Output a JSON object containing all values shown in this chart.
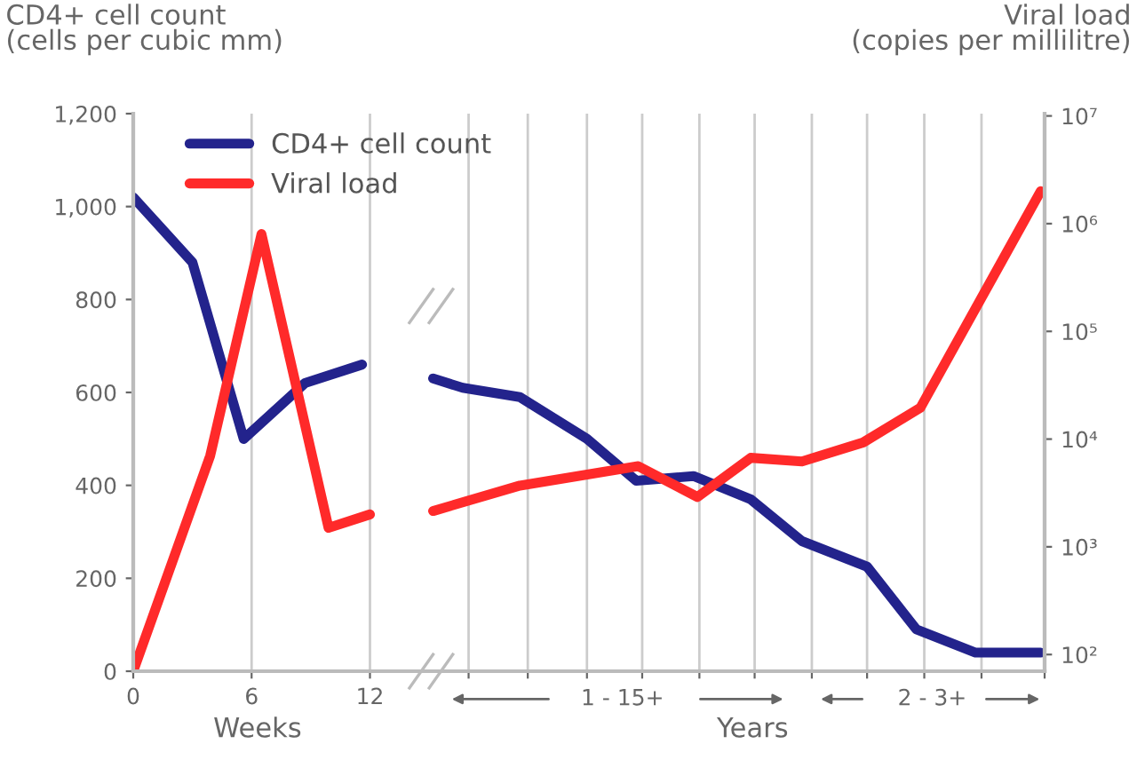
{
  "chart_data": {
    "type": "line",
    "ylabel": "CD4+ cell count\n(cells per cubic mm)",
    "y2label": "Viral load\n(copies per millilitre)",
    "xlim": [
      0,
      46.2
    ],
    "xticks": [
      0,
      6,
      12,
      {
        "value": 17,
        "label": null
      },
      {
        "value": 20,
        "label": null
      },
      {
        "value": 23,
        "label": null
      },
      {
        "value": 25.8,
        "label": null
      },
      {
        "value": 28.7,
        "label": null
      },
      {
        "value": 31.5,
        "label": null
      },
      {
        "value": 34.4,
        "label": null
      },
      {
        "value": 37.2,
        "label": null
      },
      {
        "value": 40.1,
        "label": null
      },
      {
        "value": 43,
        "label": null
      },
      {
        "value": 46.2,
        "label": null
      }
    ],
    "ylim": [
      0,
      1200
    ],
    "yticks": [
      0,
      200,
      400,
      600,
      800,
      {
        "value": 1000,
        "label": "1,000"
      },
      {
        "value": 1200,
        "label": "1,200"
      }
    ],
    "y2lim": [
      70,
      10500000
    ],
    "y2ticks": [
      {
        "value": 100,
        "label": "10²"
      },
      {
        "value": 1000,
        "label": "10³"
      },
      {
        "value": 10000,
        "label": "10⁴"
      },
      {
        "value": 100000,
        "label": "10⁵"
      },
      {
        "value": 1000000,
        "label": "10⁶"
      },
      {
        "value": 10000000,
        "label": "10⁷"
      }
    ],
    "log": "y2",
    "grid": "x",
    "legend": "top left",
    "line_style": "solid",
    "marker": "none",
    "series": [
      {
        "name": "CD4+ cell count",
        "color": "#23238c",
        "x": [
          0,
          3,
          5.6,
          8.7,
          11.6,
          13.5,
          15.2,
          16.7,
          19.6,
          23,
          25.5,
          28.4,
          31.3,
          33.9,
          37.2,
          39.7,
          42.7,
          46
        ],
        "values": [
          1020,
          880,
          500,
          620,
          660,
          null,
          630,
          610,
          590,
          500,
          410,
          420,
          370,
          280,
          225,
          90,
          40,
          40
        ]
      },
      {
        "name": "Viral load",
        "color": "#ff2a2a",
        "axis": "y2",
        "x": [
          0,
          3.9,
          6.5,
          9.9,
          12,
          13.5,
          15.2,
          19.6,
          25.6,
          28.6,
          31.3,
          33.9,
          37,
          39.9,
          46
        ],
        "values": [
          70,
          7000,
          800000,
          1500,
          2000,
          null,
          2150,
          3700,
          5600,
          2900,
          6700,
          6200,
          9300,
          19500,
          2000000
        ]
      }
    ],
    "annotations": [
      "Weeks",
      "Years",
      "1 - 15+",
      "2 - 3+"
    ]
  }
}
